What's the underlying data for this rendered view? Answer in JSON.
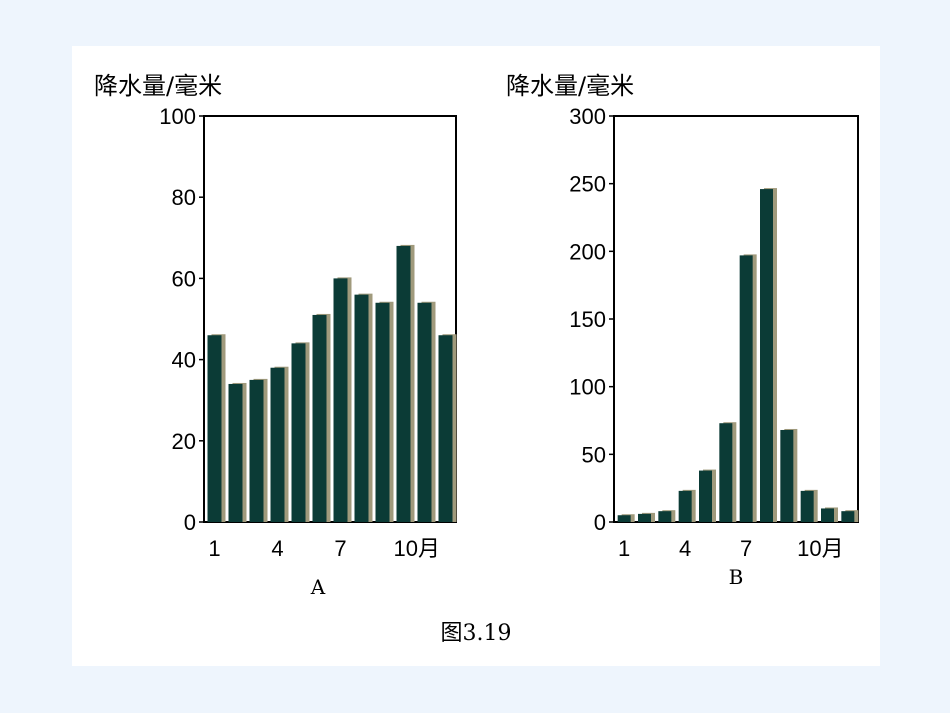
{
  "figure": {
    "caption": "图3.19"
  },
  "colors": {
    "bar": "#0b3b36",
    "shade": "#a09a7c",
    "axis": "#000000"
  },
  "chart_data": [
    {
      "type": "bar",
      "ylabel": "降水量/毫米",
      "xlabel": "A",
      "ylim": [
        0,
        100
      ],
      "yticks": [
        "0",
        "20",
        "40",
        "60",
        "80",
        "100"
      ],
      "xticks": [
        "1",
        "4",
        "7",
        "10月"
      ],
      "xtick_months": [
        1,
        4,
        7,
        10
      ],
      "categories": [
        1,
        2,
        3,
        4,
        5,
        6,
        7,
        8,
        9,
        10,
        11,
        12
      ],
      "values": [
        46,
        34,
        35,
        38,
        44,
        51,
        60,
        56,
        54,
        68,
        54,
        46
      ]
    },
    {
      "type": "bar",
      "ylabel": "降水量/毫米",
      "xlabel": "B",
      "ylim": [
        0,
        300
      ],
      "yticks": [
        "0",
        "50",
        "100",
        "150",
        "200",
        "250",
        "300"
      ],
      "xticks": [
        "1",
        "4",
        "7",
        "10月"
      ],
      "xtick_months": [
        1,
        4,
        7,
        10
      ],
      "categories": [
        1,
        2,
        3,
        4,
        5,
        6,
        7,
        8,
        9,
        10,
        11,
        12
      ],
      "values": [
        5,
        6,
        8,
        23,
        38,
        73,
        197,
        246,
        68,
        23,
        10,
        8
      ]
    }
  ]
}
